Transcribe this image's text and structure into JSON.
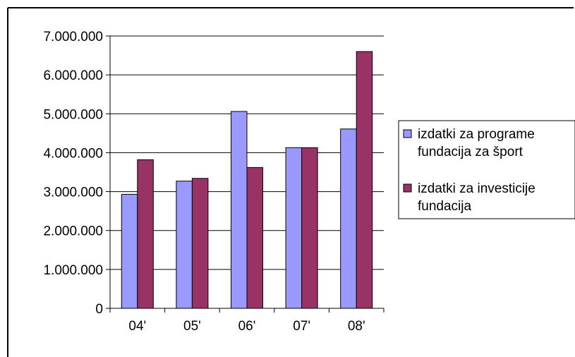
{
  "chart_data": {
    "type": "bar",
    "categories": [
      "04'",
      "05'",
      "06'",
      "07'",
      "08'"
    ],
    "series": [
      {
        "name": "izdatki za programe fundacija za šport",
        "name_lines": [
          "izdatki za programe",
          "fundacija za šport"
        ],
        "color": "#9999ff",
        "values": [
          2930000,
          3270000,
          5060000,
          4130000,
          4610000
        ]
      },
      {
        "name": "izdatki za investicije fundacija",
        "name_lines": [
          "izdatki za investicije",
          "fundacija"
        ],
        "color": "#993366",
        "values": [
          3820000,
          3340000,
          3620000,
          4130000,
          6600000
        ]
      }
    ],
    "ylim": [
      0,
      7000000
    ],
    "yticks": [
      0,
      1000000,
      2000000,
      3000000,
      4000000,
      5000000,
      6000000,
      7000000
    ],
    "ytick_labels": [
      "0",
      "1.000.000",
      "2.000.000",
      "3.000.000",
      "4.000.000",
      "5.000.000",
      "6.000.000",
      "7.000.000"
    ],
    "grid": true,
    "legend_position": "right"
  }
}
